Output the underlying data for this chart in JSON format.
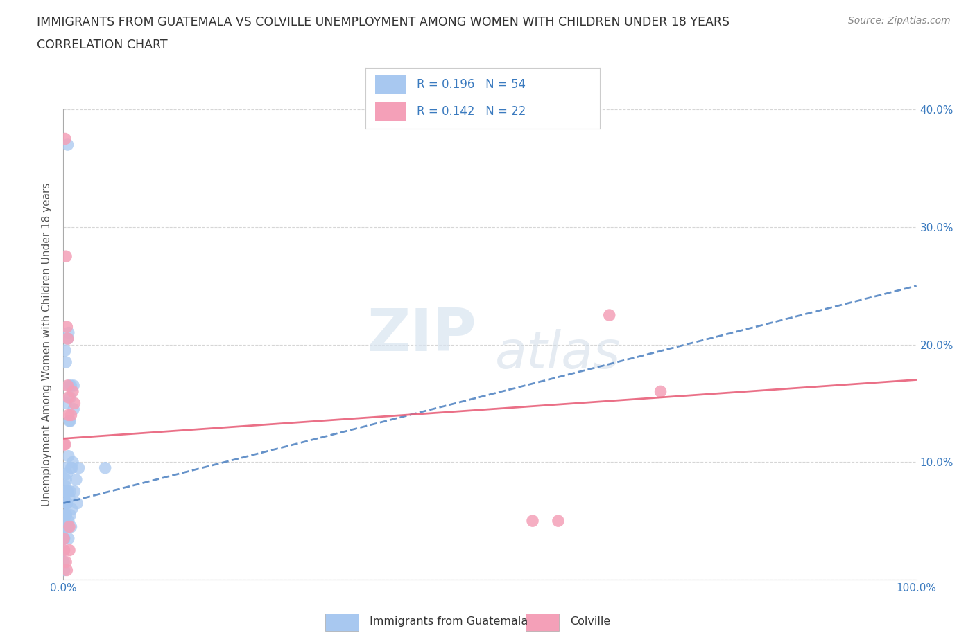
{
  "title_line1": "IMMIGRANTS FROM GUATEMALA VS COLVILLE UNEMPLOYMENT AMONG WOMEN WITH CHILDREN UNDER 18 YEARS",
  "title_line2": "CORRELATION CHART",
  "source": "Source: ZipAtlas.com",
  "ylabel": "Unemployment Among Women with Children Under 18 years",
  "xlim": [
    0,
    1.0
  ],
  "ylim": [
    0,
    0.4
  ],
  "xtick_vals": [
    0.0,
    0.1,
    0.2,
    0.3,
    0.4,
    0.5,
    0.6,
    0.7,
    0.8,
    0.9,
    1.0
  ],
  "ytick_vals": [
    0.0,
    0.1,
    0.2,
    0.3,
    0.4
  ],
  "yticklabels_right": [
    "",
    "10.0%",
    "20.0%",
    "30.0%",
    "40.0%"
  ],
  "R_blue": "0.196",
  "N_blue": "54",
  "R_pink": "0.142",
  "N_pink": "22",
  "blue_color": "#a8c8f0",
  "pink_color": "#f4a0b8",
  "blue_line_color": "#4a7fc0",
  "pink_line_color": "#e8607a",
  "blue_line_start_y": 0.065,
  "blue_line_end_y": 0.25,
  "pink_line_start_y": 0.12,
  "pink_line_end_y": 0.17,
  "watermark_zip": "ZIP",
  "watermark_atlas": "atlas",
  "legend_label_blue": "Immigrants from Guatemala",
  "legend_label_pink": "Colville",
  "blue_scatter_x": [
    0.005,
    0.012,
    0.003,
    0.002,
    0.001,
    0.004,
    0.008,
    0.006,
    0.01,
    0.007,
    0.009,
    0.011,
    0.003,
    0.002,
    0.004,
    0.006,
    0.005,
    0.003,
    0.001,
    0.002,
    0.002,
    0.003,
    0.004,
    0.005,
    0.006,
    0.007,
    0.008,
    0.009,
    0.01,
    0.012,
    0.001,
    0.001,
    0.001,
    0.002,
    0.002,
    0.003,
    0.003,
    0.004,
    0.004,
    0.005,
    0.013,
    0.015,
    0.016,
    0.018,
    0.007,
    0.008,
    0.005,
    0.006,
    0.008,
    0.009,
    0.049,
    0.0005,
    0.0005,
    0.001
  ],
  "blue_scatter_y": [
    0.37,
    0.165,
    0.185,
    0.195,
    0.07,
    0.065,
    0.055,
    0.05,
    0.06,
    0.07,
    0.095,
    0.1,
    0.075,
    0.08,
    0.09,
    0.21,
    0.205,
    0.15,
    0.115,
    0.095,
    0.075,
    0.085,
    0.065,
    0.075,
    0.105,
    0.135,
    0.155,
    0.165,
    0.095,
    0.145,
    0.035,
    0.035,
    0.045,
    0.045,
    0.055,
    0.055,
    0.055,
    0.065,
    0.065,
    0.075,
    0.075,
    0.085,
    0.065,
    0.095,
    0.165,
    0.135,
    0.045,
    0.035,
    0.075,
    0.045,
    0.095,
    0.025,
    0.015,
    0.008
  ],
  "pink_scatter_x": [
    0.002,
    0.003,
    0.004,
    0.005,
    0.006,
    0.009,
    0.011,
    0.013,
    0.55,
    0.58,
    0.0005,
    0.001,
    0.003,
    0.004,
    0.007,
    0.007,
    0.005,
    0.006,
    0.64,
    0.7,
    0.001,
    0.002
  ],
  "pink_scatter_y": [
    0.375,
    0.275,
    0.215,
    0.205,
    0.14,
    0.14,
    0.16,
    0.15,
    0.05,
    0.05,
    0.035,
    0.025,
    0.015,
    0.008,
    0.045,
    0.025,
    0.165,
    0.155,
    0.225,
    0.16,
    0.115,
    0.115
  ],
  "grid_color": "#cccccc",
  "background_color": "#ffffff",
  "title_color": "#333333",
  "axis_label_color": "#555555",
  "right_axis_color": "#3a7abf",
  "source_color": "#888888"
}
